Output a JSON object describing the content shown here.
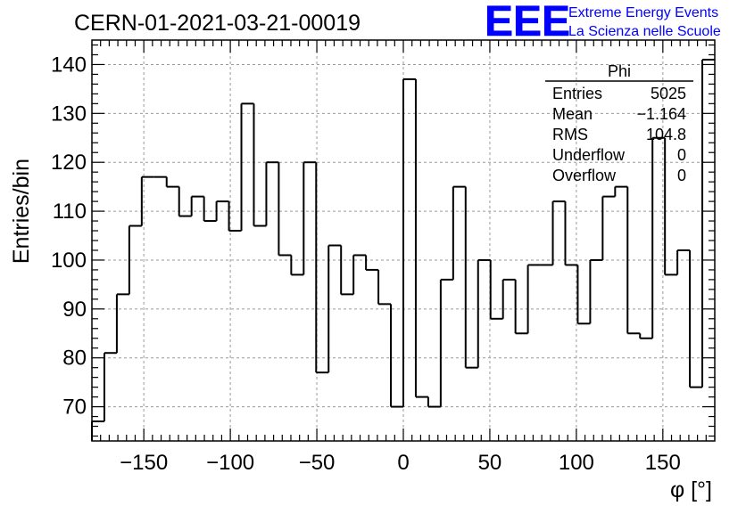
{
  "title": "CERN-01-2021-03-21-00019",
  "logo": {
    "text": "EEE",
    "line1": "Extreme Energy Events",
    "line2": "La Scienza nelle Scuole",
    "color": "#0000ff"
  },
  "stats": {
    "name": "Phi",
    "rows": [
      {
        "label": "Entries",
        "value": "5025"
      },
      {
        "label": "Mean",
        "value": "−1.164"
      },
      {
        "label": "RMS",
        "value": "104.8"
      },
      {
        "label": "Underflow",
        "value": "0"
      },
      {
        "label": "Overflow",
        "value": "0"
      }
    ]
  },
  "chart_data": {
    "type": "bar",
    "style": "step-histogram",
    "xlabel": "φ [°]",
    "ylabel": "Entries/bin",
    "xlim": [
      -180,
      180
    ],
    "ylim": [
      63,
      145
    ],
    "bin_start": -180,
    "bin_width": 7.2,
    "values": [
      67,
      81,
      93,
      107,
      117,
      117,
      115,
      109,
      113,
      108,
      112,
      106,
      132,
      107,
      120,
      101,
      97,
      120,
      77,
      103,
      93,
      101,
      98,
      91,
      70,
      137,
      72,
      70,
      96,
      115,
      78,
      100,
      88,
      96,
      85,
      99,
      99,
      112,
      99,
      87,
      100,
      113,
      115,
      85,
      84,
      125,
      97,
      102,
      74,
      141
    ],
    "xticks": [
      -150,
      -100,
      -50,
      0,
      50,
      100,
      150
    ],
    "xtick_labels": [
      "−150",
      "−100",
      "−50",
      "0",
      "50",
      "100",
      "150"
    ],
    "yticks": [
      70,
      80,
      90,
      100,
      110,
      120,
      130,
      140
    ],
    "ytick_labels": [
      "70",
      "80",
      "90",
      "100",
      "110",
      "120",
      "130",
      "140"
    ],
    "grid": true,
    "line_color": "#000000",
    "grid_color": "#9a9a9a"
  }
}
